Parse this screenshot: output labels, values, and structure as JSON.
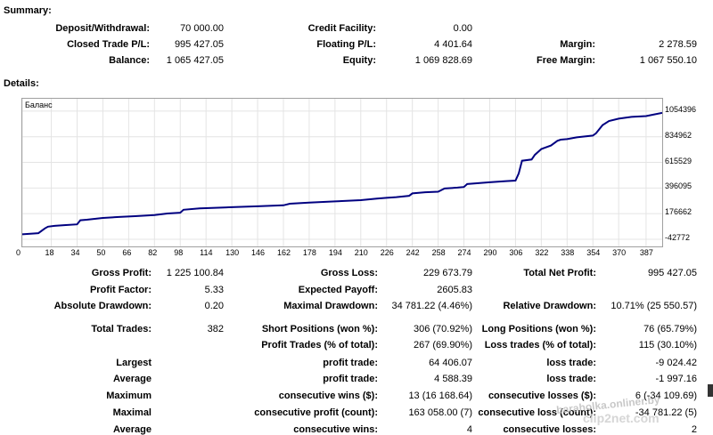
{
  "summary": {
    "title": "Summary:",
    "deposit_label": "Deposit/Withdrawal:",
    "deposit_value": "70 000.00",
    "credit_label": "Credit Facility:",
    "credit_value": "0.00",
    "closed_label": "Closed Trade P/L:",
    "closed_value": "995 427.05",
    "floating_label": "Floating P/L:",
    "floating_value": "4 401.64",
    "margin_label": "Margin:",
    "margin_value": "2 278.59",
    "balance_label": "Balance:",
    "balance_value": "1 065 427.05",
    "equity_label": "Equity:",
    "equity_value": "1 069 828.69",
    "free_margin_label": "Free Margin:",
    "free_margin_value": "1 067 550.10"
  },
  "details": {
    "title": "Details:"
  },
  "chart_data": {
    "type": "line",
    "title": "Баланс",
    "line_color": "#000080",
    "ytick_labels": [
      "1054396",
      "834962",
      "615529",
      "396095",
      "176662",
      "-42772"
    ],
    "xtick_labels": [
      "0",
      "18",
      "34",
      "50",
      "66",
      "82",
      "98",
      "114",
      "130",
      "146",
      "162",
      "178",
      "194",
      "210",
      "226",
      "242",
      "258",
      "274",
      "290",
      "306",
      "322",
      "338",
      "354",
      "370",
      "387"
    ],
    "ylim": [
      -42772,
      1130000
    ],
    "xlim": [
      0,
      397
    ],
    "grid": true,
    "series": [
      {
        "x": [
          0,
          10,
          14,
          16,
          20,
          26,
          34,
          36,
          40,
          50,
          60,
          70,
          82,
          90,
          98,
          100,
          110,
          130,
          146,
          162,
          166,
          178,
          194,
          210,
          220,
          226,
          232,
          240,
          242,
          250,
          258,
          262,
          270,
          274,
          276,
          290,
          300,
          306,
          308,
          310,
          316,
          318,
          322,
          324,
          328,
          332,
          334,
          338,
          344,
          354,
          356,
          360,
          364,
          370,
          378,
          387,
          397
        ],
        "y": [
          0,
          10000,
          50000,
          65000,
          72000,
          78000,
          85000,
          120000,
          125000,
          140000,
          148000,
          155000,
          165000,
          178000,
          185000,
          210000,
          222000,
          232000,
          240000,
          248000,
          262000,
          272000,
          282000,
          292000,
          305000,
          312000,
          318000,
          330000,
          350000,
          360000,
          365000,
          392000,
          400000,
          405000,
          430000,
          445000,
          455000,
          460000,
          520000,
          630000,
          640000,
          680000,
          730000,
          740000,
          760000,
          800000,
          810000,
          815000,
          830000,
          845000,
          865000,
          935000,
          970000,
          990000,
          1005000,
          1012000,
          1040000
        ]
      }
    ]
  },
  "stats": {
    "gross_profit_label": "Gross Profit:",
    "gross_profit_value": "1 225 100.84",
    "gross_loss_label": "Gross Loss:",
    "gross_loss_value": "229 673.79",
    "net_profit_label": "Total Net Profit:",
    "net_profit_value": "995 427.05",
    "profit_factor_label": "Profit Factor:",
    "profit_factor_value": "5.33",
    "expected_payoff_label": "Expected Payoff:",
    "expected_payoff_value": "2605.83",
    "abs_drawdown_label": "Absolute Drawdown:",
    "abs_drawdown_value": "0.20",
    "max_drawdown_label": "Maximal Drawdown:",
    "max_drawdown_value": "34 781.22 (4.46%)",
    "rel_drawdown_label": "Relative Drawdown:",
    "rel_drawdown_value": "10.71% (25 550.57)",
    "total_trades_label": "Total Trades:",
    "total_trades_value": "382",
    "short_label": "Short Positions (won %):",
    "short_value": "306 (70.92%)",
    "long_label": "Long Positions (won %):",
    "long_value": "76 (65.79%)",
    "profit_trades_label": "Profit Trades (% of total):",
    "profit_trades_value": "267 (69.90%)",
    "loss_trades_label": "Loss trades (% of total):",
    "loss_trades_value": "115 (30.10%)",
    "largest_label": "Largest",
    "largest_profit_label": "profit trade:",
    "largest_profit_value": "64 406.07",
    "largest_loss_label": "loss trade:",
    "largest_loss_value": "-9 024.42",
    "average_label": "Average",
    "average_profit_label": "profit trade:",
    "average_profit_value": "4 588.39",
    "average_loss_label": "loss trade:",
    "average_loss_value": "-1 997.16",
    "maximum_label": "Maximum",
    "max_cons_wins_label": "consecutive wins ($):",
    "max_cons_wins_value": "13 (16 168.64)",
    "max_cons_losses_label": "consecutive losses ($):",
    "max_cons_losses_value": "6 (-34 109.69)",
    "maximal_label": "Maximal",
    "maximal_profit_label": "consecutive profit (count):",
    "maximal_profit_value": "163 058.00 (7)",
    "maximal_loss_label": "consecutive loss (count):",
    "maximal_loss_value": "-34 781.22 (5)",
    "avg_cons_label": "Average",
    "avg_cons_wins_label": "consecutive wins:",
    "avg_cons_wins_value": "4",
    "avg_cons_losses_label": "consecutive losses:",
    "avg_cons_losses_value": "2"
  },
  "watermark": {
    "line1": "baraholka.onliner.by",
    "line2": "clip2net.com"
  }
}
